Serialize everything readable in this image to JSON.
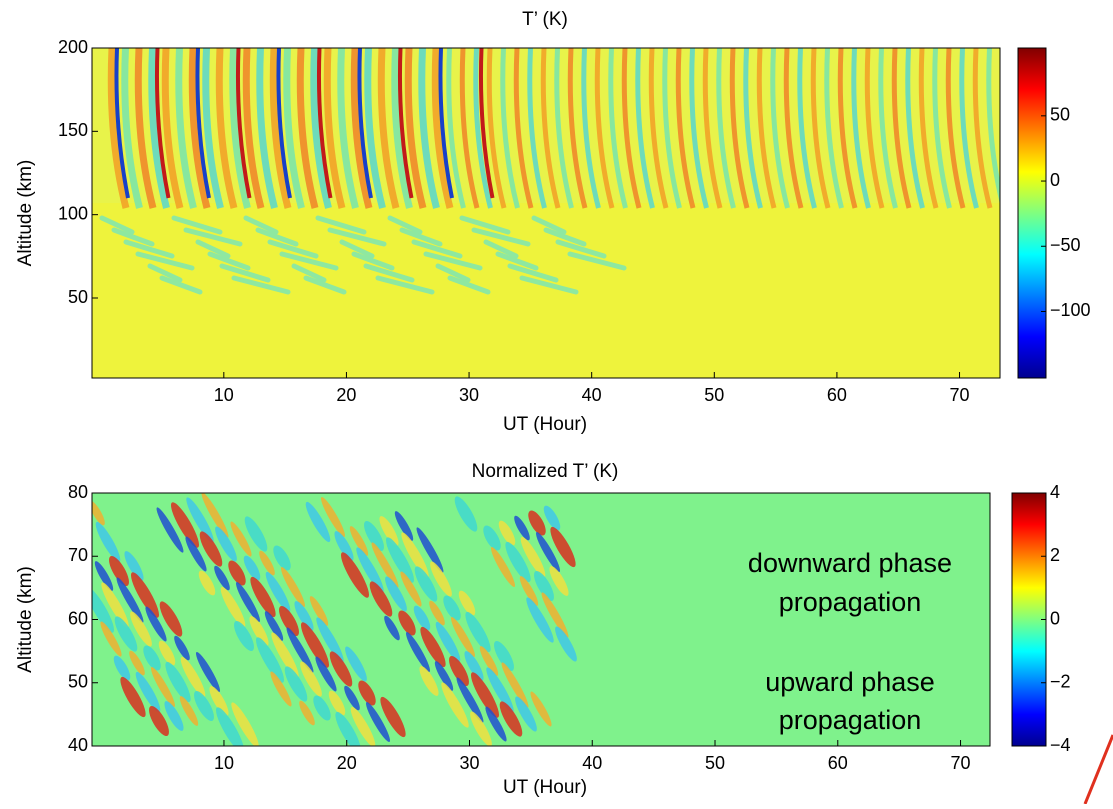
{
  "chart_data": [
    {
      "type": "heatmap",
      "title": "T’ (K)",
      "xlabel": "UT (Hour)",
      "ylabel": "Altitude (km)",
      "xlim": [
        -0.75,
        73.3
      ],
      "ylim": [
        2,
        200
      ],
      "xticks": [
        10,
        20,
        30,
        40,
        50,
        60,
        70
      ],
      "yticks": [
        50,
        100,
        150,
        200
      ],
      "colormap": "jet",
      "clim": [
        -151,
        102
      ],
      "cticks": [
        {
          "value": -100,
          "label": "−100"
        },
        {
          "value": -50,
          "label": "−50"
        },
        0,
        50
      ]
    },
    {
      "type": "heatmap",
      "title": "Normalized T’ (K)",
      "xlabel": "UT (Hour)",
      "ylabel": "Altitude (km)",
      "xlim": [
        -0.75,
        72.4
      ],
      "ylim": [
        40,
        80
      ],
      "xticks": [
        10,
        20,
        30,
        40,
        50,
        60,
        70
      ],
      "yticks": [
        40,
        50,
        60,
        70,
        80
      ],
      "colormap": "jet",
      "clim": [
        -4,
        4
      ],
      "cticks": [
        {
          "value": -4,
          "label": "−4"
        },
        {
          "value": -2,
          "label": "−2"
        },
        0,
        2,
        4
      ],
      "annotations": [
        "downward phase",
        "propagation",
        "upward phase",
        "propagation"
      ]
    }
  ]
}
